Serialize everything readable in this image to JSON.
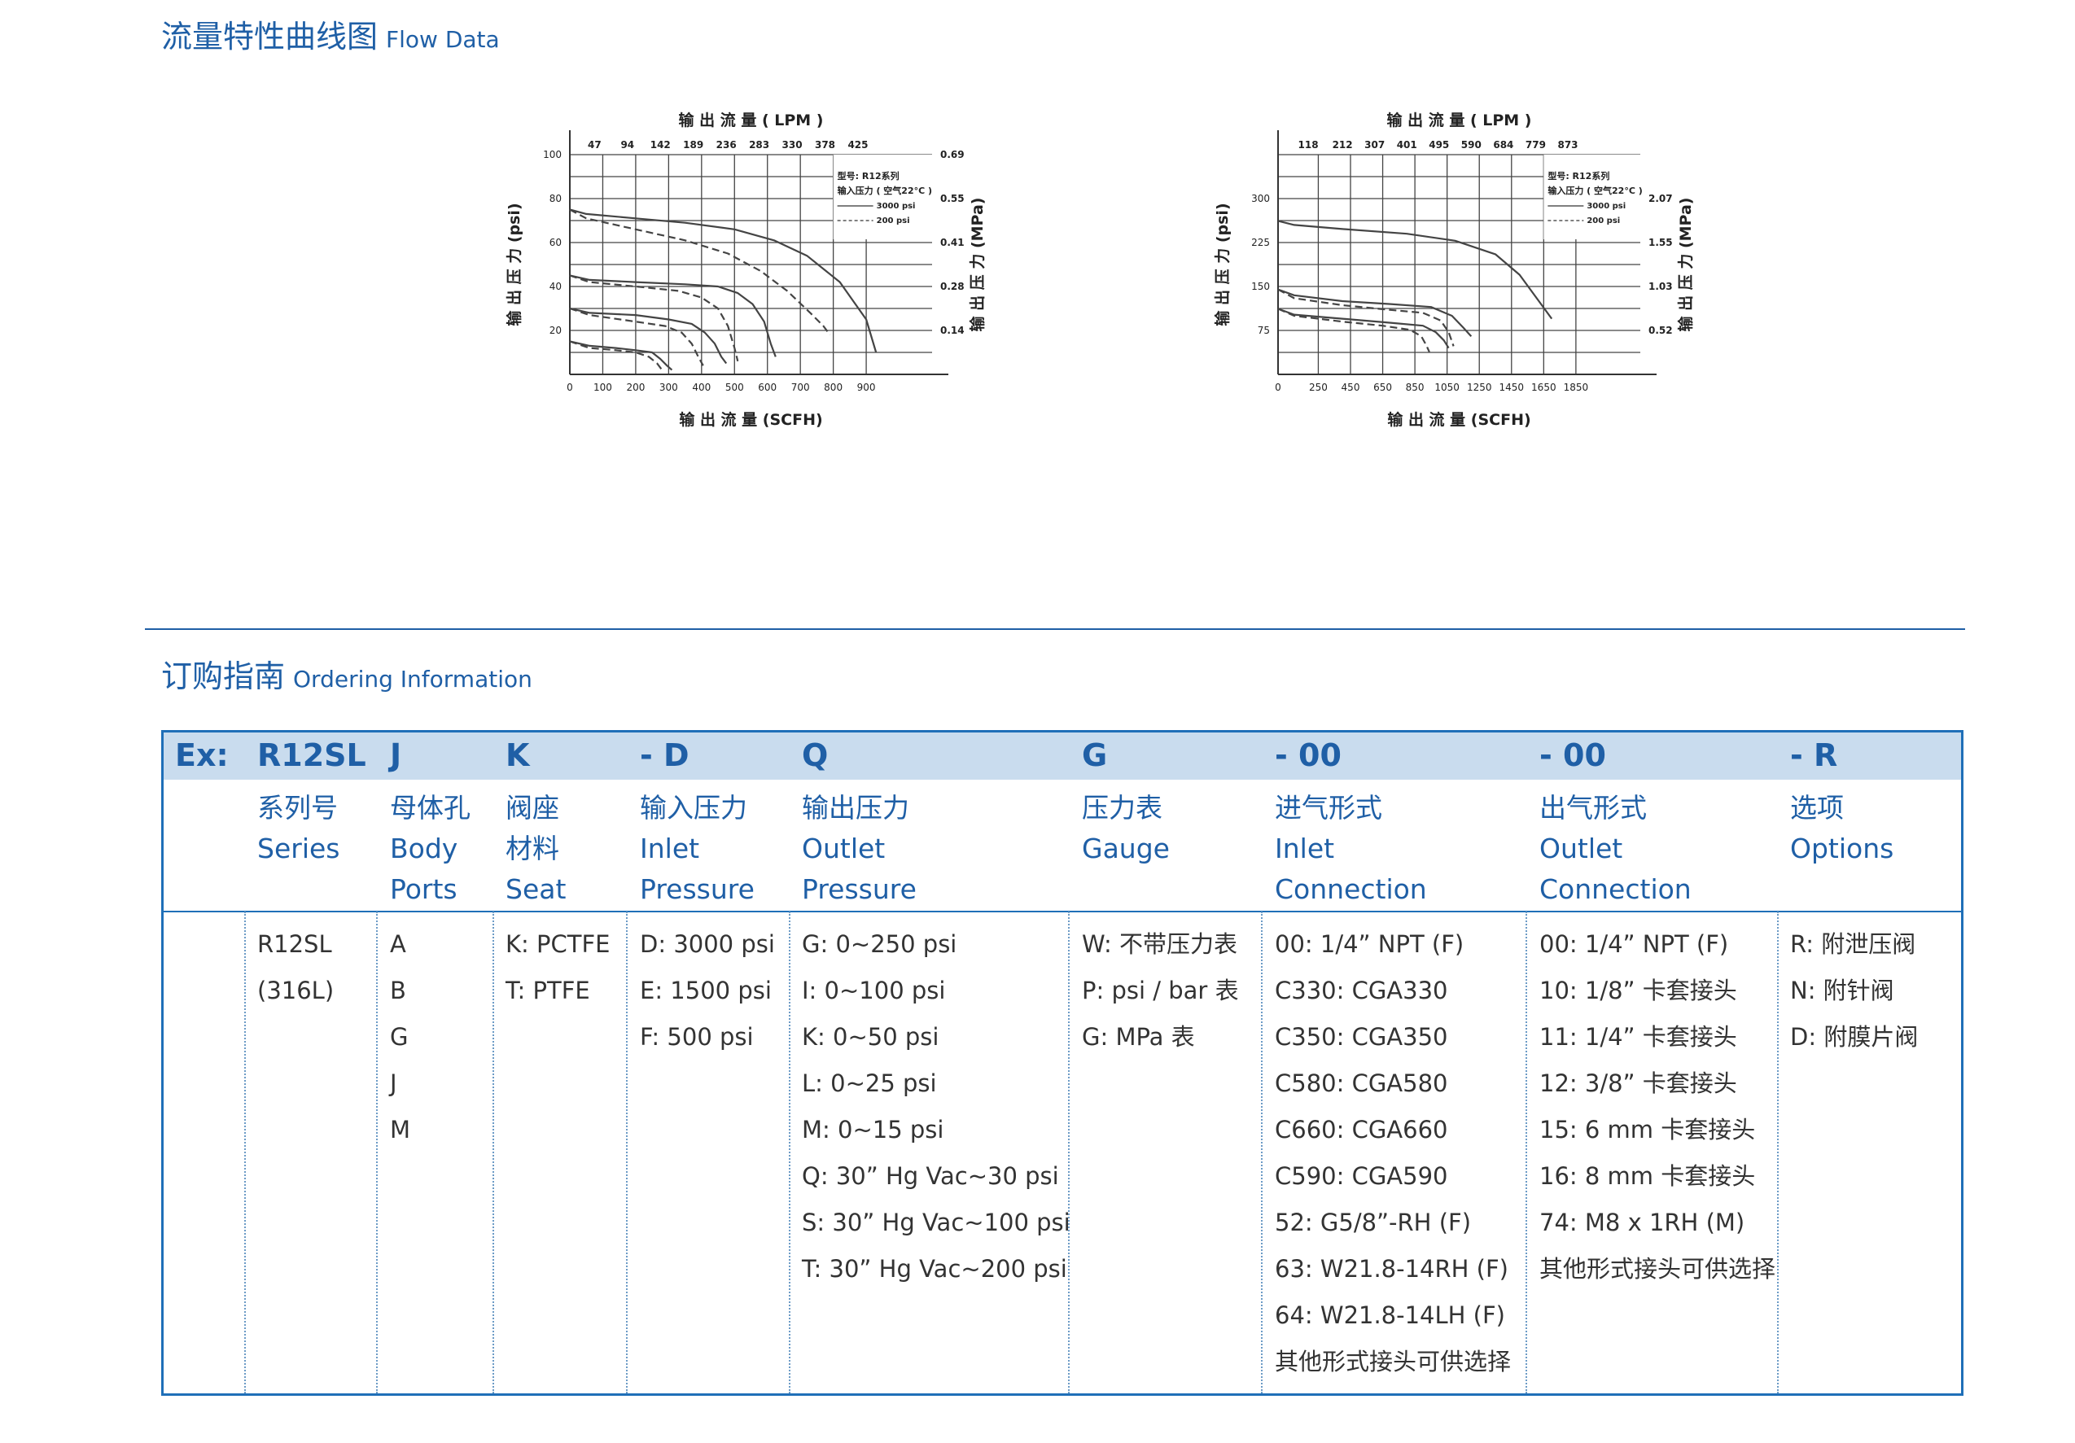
{
  "flow_section": {
    "title_zh": "流量特性曲线图",
    "title_en": "Flow Data"
  },
  "order_section": {
    "title_zh": "订购指南",
    "title_en": "Ordering Information"
  },
  "chart_data": [
    {
      "type": "line",
      "title": "输 出 流 量 ( LPM )",
      "xlabel": "输 出 流 量 (SCFH)",
      "ylabel": "输 出 压 力 (psi)",
      "ylabel_right": "输 出 压 力 (MPa)",
      "x_ticks": [
        0,
        100,
        200,
        300,
        400,
        500,
        600,
        700,
        800,
        900
      ],
      "x_top_ticks": [
        "47",
        "94",
        "142",
        "189",
        "236",
        "283",
        "330",
        "378",
        "425"
      ],
      "y_ticks": [
        20,
        40,
        60,
        80,
        100
      ],
      "y_right_ticks": [
        "0.14",
        "0.28",
        "0.41",
        "0.55",
        "0.69"
      ],
      "xlim": [
        0,
        1100
      ],
      "ylim": [
        0,
        100
      ],
      "legend": {
        "model": "型号: R12系列",
        "inlet": "输入压力 ( 空气22°C )",
        "entries": [
          "3000 psi",
          "200 psi"
        ],
        "position": "top-right"
      },
      "series": [
        {
          "name": "3000 psi",
          "dashed": false,
          "x": [
            0,
            50,
            200,
            350,
            500,
            620,
            720,
            820,
            900,
            930
          ],
          "y": [
            75,
            73,
            71,
            69,
            66,
            61,
            54,
            42,
            25,
            10
          ]
        },
        {
          "name": "200 psi",
          "dashed": true,
          "x": [
            0,
            50,
            200,
            350,
            480,
            580,
            660,
            730,
            770,
            790
          ],
          "y": [
            75,
            71,
            66,
            61,
            55,
            47,
            38,
            28,
            22,
            18
          ]
        },
        {
          "name": "3000 psi",
          "dashed": false,
          "x": [
            0,
            60,
            200,
            350,
            450,
            510,
            555,
            590,
            610,
            625
          ],
          "y": [
            45,
            43,
            42,
            41,
            40,
            37,
            32,
            24,
            14,
            8
          ]
        },
        {
          "name": "200 psi",
          "dashed": true,
          "x": [
            0,
            60,
            200,
            330,
            400,
            450,
            480,
            500,
            510
          ],
          "y": [
            45,
            42,
            40,
            38,
            35,
            30,
            22,
            12,
            6
          ]
        },
        {
          "name": "3000 psi",
          "dashed": false,
          "x": [
            0,
            60,
            200,
            300,
            370,
            410,
            440,
            460,
            475
          ],
          "y": [
            30,
            28,
            27,
            25,
            23,
            19,
            14,
            8,
            5
          ]
        },
        {
          "name": "200 psi",
          "dashed": true,
          "x": [
            0,
            60,
            200,
            290,
            340,
            370,
            390,
            405
          ],
          "y": [
            30,
            27,
            24,
            22,
            19,
            14,
            8,
            4
          ]
        },
        {
          "name": "3000 psi",
          "dashed": false,
          "x": [
            0,
            60,
            140,
            200,
            250,
            275,
            295,
            310
          ],
          "y": [
            15,
            13,
            12,
            11,
            10,
            7,
            4,
            2
          ]
        },
        {
          "name": "200 psi",
          "dashed": true,
          "x": [
            0,
            60,
            140,
            200,
            240,
            265,
            280
          ],
          "y": [
            15,
            12,
            11,
            10,
            8,
            5,
            2
          ]
        }
      ]
    },
    {
      "type": "line",
      "title": "输 出 流 量 ( LPM )",
      "xlabel": "输 出 流 量 (SCFH)",
      "ylabel": "输 出 压 力 (psi)",
      "ylabel_right": "输 出 压 力 (MPa)",
      "x_ticks": [
        0,
        250,
        450,
        650,
        850,
        1050,
        1250,
        1450,
        1650,
        1850
      ],
      "x_top_ticks": [
        "118",
        "212",
        "307",
        "401",
        "495",
        "590",
        "684",
        "779",
        "873"
      ],
      "y_ticks": [
        75,
        150,
        225,
        300
      ],
      "y_right_ticks": [
        "0.52",
        "1.03",
        "1.55",
        "2.07"
      ],
      "xlim": [
        0,
        2250
      ],
      "ylim": [
        0,
        375
      ],
      "legend": {
        "model": "型号: R12系列",
        "inlet": "输入压力 ( 空气22°C )",
        "entries": [
          "3000 psi",
          "200 psi"
        ],
        "position": "top-right"
      },
      "series": [
        {
          "name": "3000 psi",
          "dashed": false,
          "x": [
            0,
            100,
            400,
            800,
            1100,
            1350,
            1500,
            1620,
            1700
          ],
          "y": [
            262,
            255,
            248,
            240,
            228,
            205,
            170,
            125,
            95
          ]
        },
        {
          "name": "3000 psi",
          "dashed": false,
          "x": [
            0,
            100,
            400,
            700,
            950,
            1080,
            1150,
            1200
          ],
          "y": [
            145,
            135,
            125,
            120,
            115,
            100,
            80,
            65
          ]
        },
        {
          "name": "200 psi",
          "dashed": true,
          "x": [
            0,
            100,
            400,
            700,
            900,
            1010,
            1060,
            1090
          ],
          "y": [
            145,
            130,
            118,
            110,
            105,
            92,
            72,
            48
          ]
        },
        {
          "name": "3000 psi",
          "dashed": false,
          "x": [
            0,
            100,
            400,
            700,
            900,
            980,
            1030,
            1060
          ],
          "y": [
            112,
            102,
            95,
            88,
            83,
            72,
            58,
            45
          ]
        },
        {
          "name": "200 psi",
          "dashed": true,
          "x": [
            0,
            100,
            400,
            650,
            820,
            890,
            920,
            940
          ],
          "y": [
            112,
            100,
            90,
            83,
            76,
            65,
            50,
            38
          ]
        }
      ]
    }
  ],
  "order_table": {
    "codes": [
      "Ex:",
      "R12SL",
      "J",
      "K",
      "-   D",
      "Q",
      "G",
      "-   00",
      "-   00",
      "-   R"
    ],
    "headers": [
      {
        "zh": "系列号",
        "en": [
          "Series"
        ]
      },
      {
        "zh": "母体孔",
        "en": [
          "Body",
          "Ports"
        ]
      },
      {
        "zh": "阀座",
        "en": [
          "材料",
          "Seat"
        ]
      },
      {
        "zh": "输入压力",
        "en": [
          "Inlet",
          "Pressure"
        ]
      },
      {
        "zh": "输出压力",
        "en": [
          "Outlet",
          "Pressure"
        ]
      },
      {
        "zh": "压力表",
        "en": [
          "Gauge"
        ]
      },
      {
        "zh": "进气形式",
        "en": [
          "Inlet",
          "Connection"
        ]
      },
      {
        "zh": "出气形式",
        "en": [
          "Outlet",
          "Connection"
        ]
      },
      {
        "zh": "选项",
        "en": [
          "Options"
        ]
      }
    ],
    "columns": [
      [
        "R12SL",
        "(316L)"
      ],
      [
        "A",
        "B",
        "G",
        "J",
        "M"
      ],
      [
        "K: PCTFE",
        "T: PTFE"
      ],
      [
        "D: 3000 psi",
        "E: 1500 psi",
        "F: 500 psi"
      ],
      [
        "G: 0~250 psi",
        "I: 0~100 psi",
        "K: 0~50 psi",
        "L: 0~25 psi",
        "M: 0~15 psi",
        "Q: 30” Hg Vac~30 psi",
        "S: 30” Hg Vac~100 psi",
        "T: 30” Hg Vac~200 psi"
      ],
      [
        "W: 不带压力表",
        "P: psi / bar 表",
        "G: MPa 表"
      ],
      [
        "00: 1/4” NPT (F)",
        "C330: CGA330",
        "C350: CGA350",
        "C580: CGA580",
        "C660: CGA660",
        "C590: CGA590",
        "52: G5/8”-RH (F)",
        "63: W21.8-14RH (F)",
        "64: W21.8-14LH (F)",
        "其他形式接头可供选择"
      ],
      [
        "00: 1/4” NPT (F)",
        "10: 1/8” 卡套接头",
        "11: 1/4” 卡套接头",
        "12: 3/8” 卡套接头",
        "15: 6 mm 卡套接头",
        "16: 8 mm 卡套接头",
        "74: M8 x 1RH (M)",
        "其他形式接头可供选择"
      ],
      [
        "R: 附泄压阀",
        "N: 附针阀",
        "D: 附膜片阀"
      ]
    ]
  }
}
